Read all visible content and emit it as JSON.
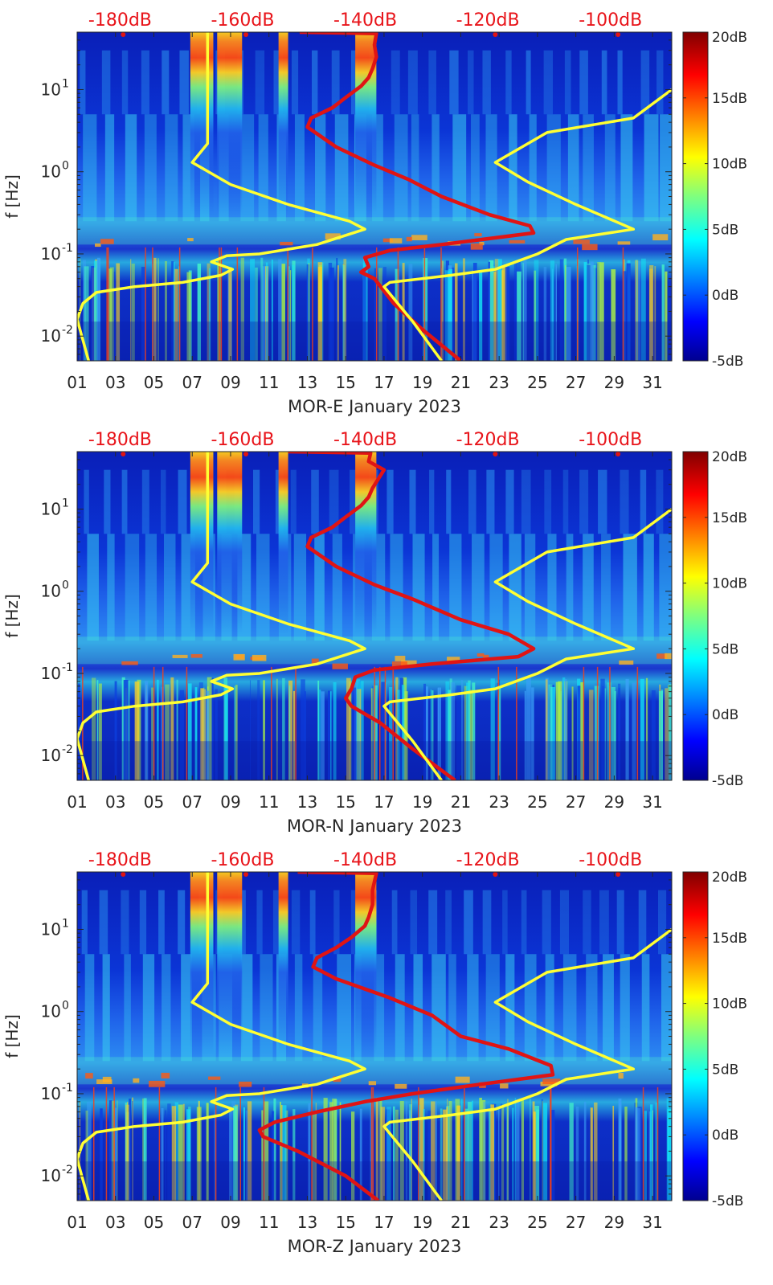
{
  "chart_data": [
    {
      "type": "heatmap",
      "title": "MOR-E January 2023",
      "xlabel": "MOR-E January 2023",
      "ylabel": "f [Hz]",
      "x_ticks": [
        "01",
        "03",
        "05",
        "07",
        "09",
        "11",
        "13",
        "15",
        "17",
        "19",
        "21",
        "23",
        "25",
        "27",
        "29",
        "31"
      ],
      "x_range_days": [
        1,
        32
      ],
      "y_ticks": [
        "10^1",
        "10^0",
        "10^-1",
        "10^-2"
      ],
      "y_range_hz": [
        0.005,
        50
      ],
      "top_axis_labels": [
        "-180dB",
        "-160dB",
        "-140dB",
        "-120dB",
        "-100dB"
      ],
      "top_axis_range_db": [
        -187,
        -90
      ],
      "colorbar": {
        "ticks": [
          "20dB",
          "15dB",
          "10dB",
          "5dB",
          "0dB",
          "-5dB"
        ],
        "range_db": [
          -5,
          20
        ]
      },
      "hot_bands_days": [
        [
          6.9,
          8.1
        ],
        [
          8.3,
          9.6
        ],
        [
          11.5,
          12.0
        ],
        [
          15.5,
          16.6
        ]
      ],
      "series": [
        {
          "name": "yellow-noise-model-low",
          "color": "#ffff33",
          "points": [
            [
              1.6,
              0.005
            ],
            [
              1.0,
              0.016
            ],
            [
              1.3,
              0.025
            ],
            [
              2.0,
              0.034
            ],
            [
              4.0,
              0.04
            ],
            [
              6.5,
              0.045
            ],
            [
              8.5,
              0.055
            ],
            [
              9.1,
              0.065
            ],
            [
              8.0,
              0.08
            ],
            [
              8.8,
              0.095
            ],
            [
              10.5,
              0.1
            ],
            [
              13.5,
              0.13
            ],
            [
              16.0,
              0.2
            ],
            [
              15.2,
              0.25
            ],
            [
              12.0,
              0.4
            ],
            [
              9.0,
              0.7
            ],
            [
              7.0,
              1.3
            ],
            [
              7.8,
              2.2
            ],
            [
              7.8,
              3.0
            ],
            [
              7.8,
              50
            ]
          ]
        },
        {
          "name": "red-measured-psd",
          "color": "#e01414",
          "points": [
            [
              21.0,
              0.005
            ],
            [
              19.0,
              0.012
            ],
            [
              17.5,
              0.025
            ],
            [
              16.5,
              0.05
            ],
            [
              15.8,
              0.06
            ],
            [
              16.2,
              0.07
            ],
            [
              16.0,
              0.09
            ],
            [
              17.3,
              0.11
            ],
            [
              20.0,
              0.13
            ],
            [
              24.8,
              0.18
            ],
            [
              24.6,
              0.22
            ],
            [
              22.5,
              0.3
            ],
            [
              20.0,
              0.5
            ],
            [
              18.3,
              0.8
            ],
            [
              16.5,
              1.2
            ],
            [
              14.5,
              2.0
            ],
            [
              13.0,
              3.5
            ],
            [
              13.2,
              4.5
            ],
            [
              14.3,
              6.0
            ],
            [
              15.0,
              8.0
            ],
            [
              15.8,
              11.0
            ],
            [
              16.2,
              14.0
            ],
            [
              16.4,
              18.0
            ],
            [
              16.6,
              25.0
            ],
            [
              16.5,
              35.0
            ],
            [
              16.6,
              48.0
            ],
            [
              12.6,
              50.0
            ]
          ]
        },
        {
          "name": "yellow-noise-model-high",
          "color": "#ffff33",
          "points": [
            [
              20.0,
              0.005
            ],
            [
              18.5,
              0.015
            ],
            [
              17.0,
              0.04
            ],
            [
              17.3,
              0.045
            ],
            [
              20.5,
              0.055
            ],
            [
              22.8,
              0.065
            ],
            [
              25.0,
              0.1
            ],
            [
              26.5,
              0.15
            ],
            [
              30.0,
              0.2
            ],
            [
              27.0,
              0.4
            ],
            [
              24.5,
              0.75
            ],
            [
              22.8,
              1.3
            ],
            [
              25.5,
              3.0
            ],
            [
              30.0,
              4.5
            ],
            [
              32.0,
              10.0
            ]
          ]
        }
      ]
    },
    {
      "type": "heatmap",
      "title": "MOR-N January 2023",
      "xlabel": "MOR-N January 2023",
      "ylabel": "f [Hz]",
      "x_ticks": [
        "01",
        "03",
        "05",
        "07",
        "09",
        "11",
        "13",
        "15",
        "17",
        "19",
        "21",
        "23",
        "25",
        "27",
        "29",
        "31"
      ],
      "x_range_days": [
        1,
        32
      ],
      "y_ticks": [
        "10^1",
        "10^0",
        "10^-1",
        "10^-2"
      ],
      "y_range_hz": [
        0.005,
        50
      ],
      "top_axis_labels": [
        "-180dB",
        "-160dB",
        "-140dB",
        "-120dB",
        "-100dB"
      ],
      "top_axis_range_db": [
        -187,
        -90
      ],
      "colorbar": {
        "ticks": [
          "20dB",
          "15dB",
          "10dB",
          "5dB",
          "0dB",
          "-5dB"
        ],
        "range_db": [
          -5,
          20
        ]
      },
      "hot_bands_days": [
        [
          6.9,
          8.1
        ],
        [
          8.3,
          9.6
        ],
        [
          11.5,
          12.0
        ],
        [
          15.5,
          16.6
        ]
      ],
      "series": [
        {
          "name": "yellow-noise-model-low",
          "color": "#ffff33",
          "points": [
            [
              1.6,
              0.005
            ],
            [
              1.0,
              0.016
            ],
            [
              1.3,
              0.025
            ],
            [
              2.0,
              0.034
            ],
            [
              4.0,
              0.04
            ],
            [
              6.5,
              0.045
            ],
            [
              8.5,
              0.055
            ],
            [
              9.1,
              0.065
            ],
            [
              8.0,
              0.08
            ],
            [
              8.8,
              0.095
            ],
            [
              10.5,
              0.1
            ],
            [
              13.5,
              0.13
            ],
            [
              16.0,
              0.2
            ],
            [
              15.2,
              0.25
            ],
            [
              12.0,
              0.4
            ],
            [
              9.0,
              0.7
            ],
            [
              7.0,
              1.3
            ],
            [
              7.8,
              2.2
            ],
            [
              7.8,
              3.0
            ],
            [
              7.8,
              50
            ]
          ]
        },
        {
          "name": "red-measured-psd",
          "color": "#e01414",
          "points": [
            [
              20.7,
              0.005
            ],
            [
              18.5,
              0.012
            ],
            [
              16.8,
              0.025
            ],
            [
              15.3,
              0.04
            ],
            [
              15.0,
              0.05
            ],
            [
              15.3,
              0.065
            ],
            [
              15.5,
              0.09
            ],
            [
              16.5,
              0.11
            ],
            [
              19.5,
              0.13
            ],
            [
              24.0,
              0.16
            ],
            [
              24.8,
              0.2
            ],
            [
              23.5,
              0.3
            ],
            [
              21.0,
              0.45
            ],
            [
              18.5,
              0.8
            ],
            [
              16.5,
              1.2
            ],
            [
              14.5,
              2.0
            ],
            [
              13.0,
              3.5
            ],
            [
              13.2,
              4.5
            ],
            [
              14.3,
              6.0
            ],
            [
              15.0,
              8.0
            ],
            [
              15.8,
              11.0
            ],
            [
              16.2,
              14.0
            ],
            [
              16.4,
              18.0
            ],
            [
              17.0,
              30.0
            ],
            [
              16.2,
              38.0
            ],
            [
              16.3,
              48.0
            ],
            [
              12.0,
              50.0
            ]
          ]
        },
        {
          "name": "yellow-noise-model-high",
          "color": "#ffff33",
          "points": [
            [
              20.0,
              0.005
            ],
            [
              18.5,
              0.015
            ],
            [
              17.0,
              0.04
            ],
            [
              17.3,
              0.045
            ],
            [
              20.5,
              0.055
            ],
            [
              22.8,
              0.065
            ],
            [
              25.0,
              0.1
            ],
            [
              26.5,
              0.15
            ],
            [
              30.0,
              0.2
            ],
            [
              27.0,
              0.4
            ],
            [
              24.5,
              0.75
            ],
            [
              22.8,
              1.3
            ],
            [
              25.5,
              3.0
            ],
            [
              30.0,
              4.5
            ],
            [
              32.0,
              10.0
            ]
          ]
        }
      ]
    },
    {
      "type": "heatmap",
      "title": "MOR-Z January 2023",
      "xlabel": "MOR-Z January 2023",
      "ylabel": "f [Hz]",
      "x_ticks": [
        "01",
        "03",
        "05",
        "07",
        "09",
        "11",
        "13",
        "15",
        "17",
        "19",
        "21",
        "23",
        "25",
        "27",
        "29",
        "31"
      ],
      "x_range_days": [
        1,
        32
      ],
      "y_ticks": [
        "10^1",
        "10^0",
        "10^-1",
        "10^-2"
      ],
      "y_range_hz": [
        0.005,
        50
      ],
      "top_axis_labels": [
        "-180dB",
        "-160dB",
        "-140dB",
        "-120dB",
        "-100dB"
      ],
      "top_axis_range_db": [
        -187,
        -90
      ],
      "colorbar": {
        "ticks": [
          "20dB",
          "15dB",
          "10dB",
          "5dB",
          "0dB",
          "-5dB"
        ],
        "range_db": [
          -5,
          20
        ]
      },
      "hot_bands_days": [
        [
          6.9,
          8.1
        ],
        [
          8.3,
          9.6
        ],
        [
          11.5,
          12.0
        ],
        [
          15.5,
          16.6
        ]
      ],
      "series": [
        {
          "name": "yellow-noise-model-low",
          "color": "#ffff33",
          "points": [
            [
              1.6,
              0.005
            ],
            [
              1.0,
              0.016
            ],
            [
              1.3,
              0.025
            ],
            [
              2.0,
              0.034
            ],
            [
              4.0,
              0.04
            ],
            [
              6.5,
              0.045
            ],
            [
              8.5,
              0.055
            ],
            [
              9.1,
              0.065
            ],
            [
              8.0,
              0.08
            ],
            [
              8.8,
              0.095
            ],
            [
              10.5,
              0.1
            ],
            [
              13.5,
              0.13
            ],
            [
              16.0,
              0.2
            ],
            [
              15.2,
              0.25
            ],
            [
              12.0,
              0.4
            ],
            [
              9.0,
              0.7
            ],
            [
              7.0,
              1.3
            ],
            [
              7.8,
              2.2
            ],
            [
              7.8,
              3.0
            ],
            [
              7.8,
              50
            ]
          ]
        },
        {
          "name": "red-measured-psd",
          "color": "#e01414",
          "points": [
            [
              16.7,
              0.005
            ],
            [
              15.0,
              0.01
            ],
            [
              12.5,
              0.02
            ],
            [
              10.7,
              0.03
            ],
            [
              10.5,
              0.036
            ],
            [
              11.3,
              0.045
            ],
            [
              13.5,
              0.06
            ],
            [
              16.0,
              0.08
            ],
            [
              18.5,
              0.1
            ],
            [
              22.0,
              0.13
            ],
            [
              25.8,
              0.17
            ],
            [
              25.7,
              0.22
            ],
            [
              23.5,
              0.35
            ],
            [
              21.0,
              0.5
            ],
            [
              19.5,
              0.9
            ],
            [
              17.2,
              1.5
            ],
            [
              14.5,
              2.5
            ],
            [
              13.3,
              3.5
            ],
            [
              13.5,
              4.5
            ],
            [
              14.5,
              6.0
            ],
            [
              15.3,
              8.0
            ],
            [
              16.0,
              11.0
            ],
            [
              16.2,
              14.0
            ],
            [
              16.4,
              20.0
            ],
            [
              16.4,
              30.0
            ],
            [
              16.6,
              48.0
            ],
            [
              12.5,
              50.0
            ]
          ]
        },
        {
          "name": "yellow-noise-model-high",
          "color": "#ffff33",
          "points": [
            [
              20.0,
              0.005
            ],
            [
              18.5,
              0.015
            ],
            [
              17.0,
              0.04
            ],
            [
              17.3,
              0.045
            ],
            [
              20.5,
              0.055
            ],
            [
              22.8,
              0.065
            ],
            [
              25.0,
              0.1
            ],
            [
              26.5,
              0.15
            ],
            [
              30.0,
              0.2
            ],
            [
              27.0,
              0.4
            ],
            [
              24.5,
              0.75
            ],
            [
              22.8,
              1.3
            ],
            [
              25.5,
              3.0
            ],
            [
              30.0,
              4.5
            ],
            [
              32.0,
              10.0
            ]
          ]
        }
      ]
    }
  ]
}
